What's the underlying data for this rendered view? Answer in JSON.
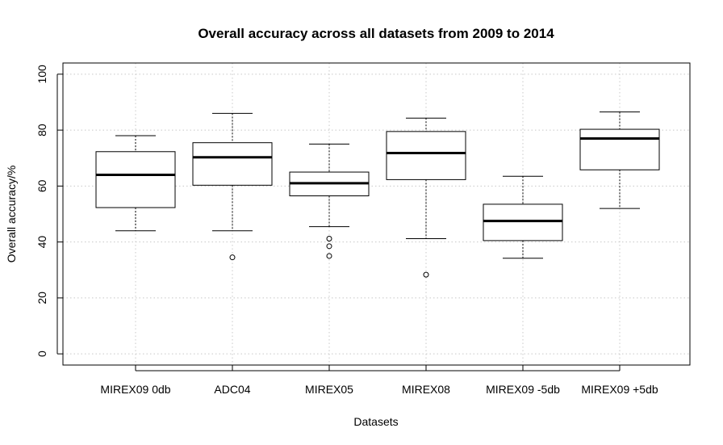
{
  "chart_data": {
    "type": "boxplot",
    "title": "Overall accuracy across all datasets from 2009 to 2014",
    "xlabel": "Datasets",
    "ylabel": "Overall accuracy/%",
    "ylim": [
      -4,
      104
    ],
    "yticks": [
      0,
      20,
      40,
      60,
      80,
      100
    ],
    "grid": true,
    "categories": [
      "MIREX09 0db",
      "ADC04",
      "MIREX05",
      "MIREX08",
      "MIREX09 -5db",
      "MIREX09 +5db"
    ],
    "boxes": [
      {
        "whisker_low": 44,
        "q1": 52.3,
        "median": 64,
        "q3": 72.3,
        "whisker_high": 78,
        "outliers": []
      },
      {
        "whisker_low": 44,
        "q1": 60.3,
        "median": 70.3,
        "q3": 75.5,
        "whisker_high": 86,
        "outliers": [
          34.5
        ]
      },
      {
        "whisker_low": 45.5,
        "q1": 56.5,
        "median": 61,
        "q3": 65,
        "whisker_high": 75,
        "outliers": [
          41.2,
          38.5,
          35
        ]
      },
      {
        "whisker_low": 41.2,
        "q1": 62.3,
        "median": 71.8,
        "q3": 79.5,
        "whisker_high": 84.3,
        "outliers": [
          28.3
        ]
      },
      {
        "whisker_low": 34.2,
        "q1": 40.5,
        "median": 47.5,
        "q3": 53.5,
        "whisker_high": 63.5,
        "outliers": []
      },
      {
        "whisker_low": 52,
        "q1": 65.8,
        "median": 77,
        "q3": 80.3,
        "whisker_high": 86.5,
        "outliers": []
      }
    ]
  }
}
